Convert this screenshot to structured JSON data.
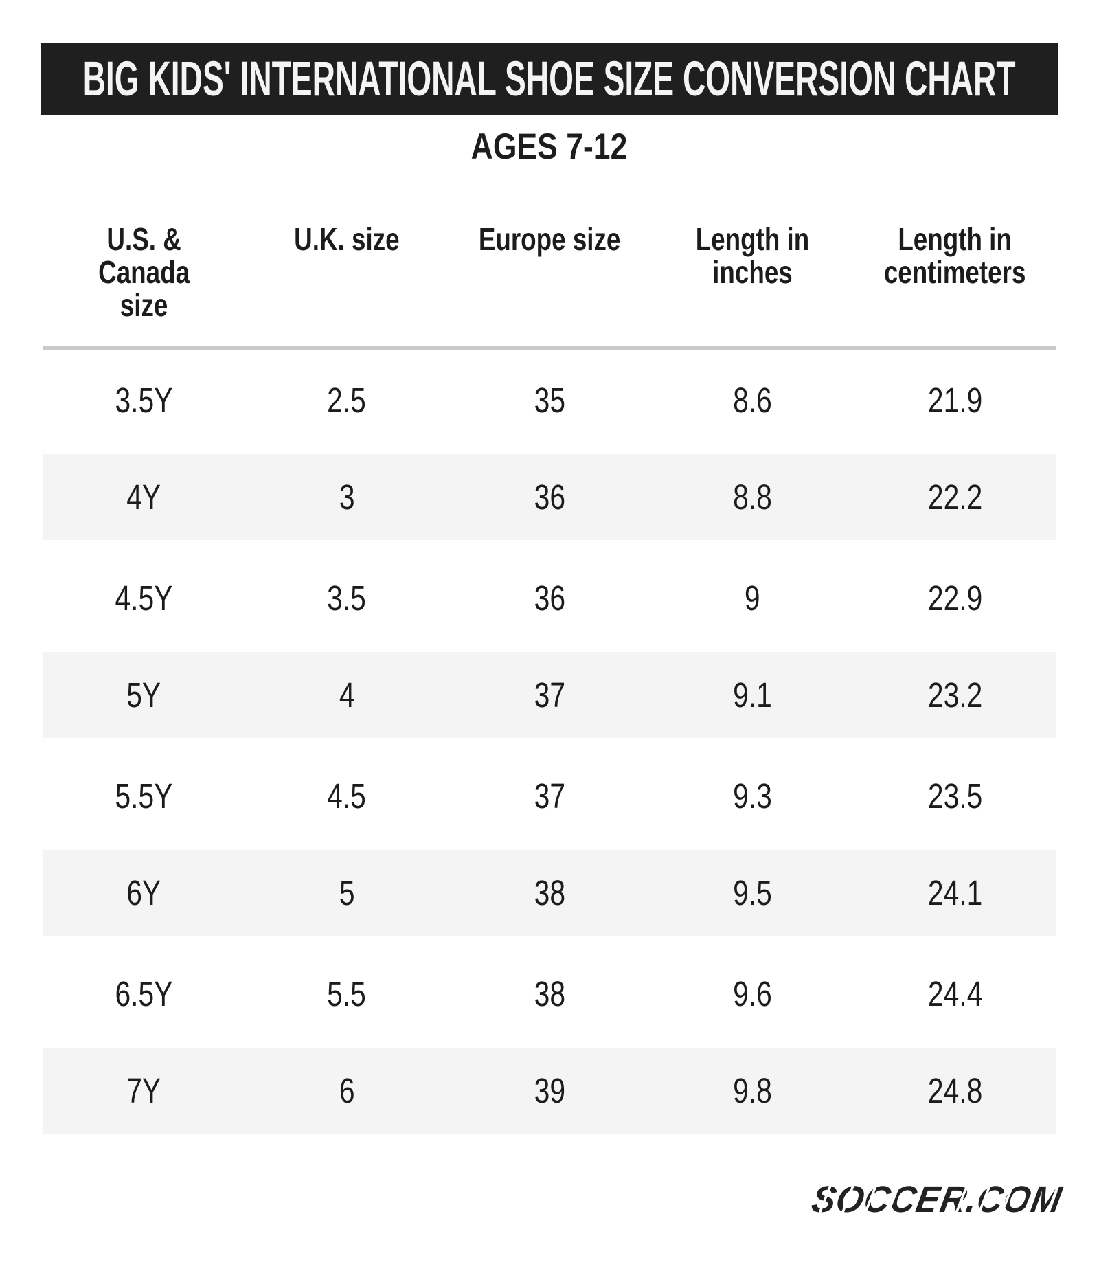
{
  "header": {
    "title": "BIG KIDS' INTERNATIONAL SHOE SIZE CONVERSION CHART",
    "subtitle": "AGES 7-12"
  },
  "chart_data": {
    "type": "table",
    "title": "BIG KIDS' INTERNATIONAL SHOE SIZE CONVERSION CHART",
    "subtitle": "AGES 7-12",
    "columns": [
      "U.S. & Canada\nsize",
      "U.K. size",
      "Europe size",
      "Length in\ninches",
      "Length in\ncentimeters"
    ],
    "rows": [
      [
        "3.5Y",
        "2.5",
        "35",
        "8.6",
        "21.9"
      ],
      [
        "4Y",
        "3",
        "36",
        "8.8",
        "22.2"
      ],
      [
        "4.5Y",
        "3.5",
        "36",
        "9",
        "22.9"
      ],
      [
        "5Y",
        "4",
        "37",
        "9.1",
        "23.2"
      ],
      [
        "5.5Y",
        "4.5",
        "37",
        "9.3",
        "23.5"
      ],
      [
        "6Y",
        "5",
        "38",
        "9.5",
        "24.1"
      ],
      [
        "6.5Y",
        "5.5",
        "38",
        "9.6",
        "24.4"
      ],
      [
        "7Y",
        "6",
        "39",
        "9.8",
        "24.8"
      ]
    ],
    "layout": {
      "shaded_rows": "every second row (4Y, 5Y, 6Y, 7Y rows)",
      "grid": "off",
      "header_alignment": "center-top",
      "cell_alignment": "center"
    }
  },
  "footer": {
    "logo_text": "SOCCER.COM"
  },
  "colors": {
    "background": "#ffffff",
    "title_bar_bg": "#1f1f1f",
    "title_bar_text": "#f5f4f4",
    "body_text": "#1c1c1c",
    "shaded_row_bg": "#f4f4f4",
    "divider": "#c9c9c9",
    "logo": "#242122"
  }
}
